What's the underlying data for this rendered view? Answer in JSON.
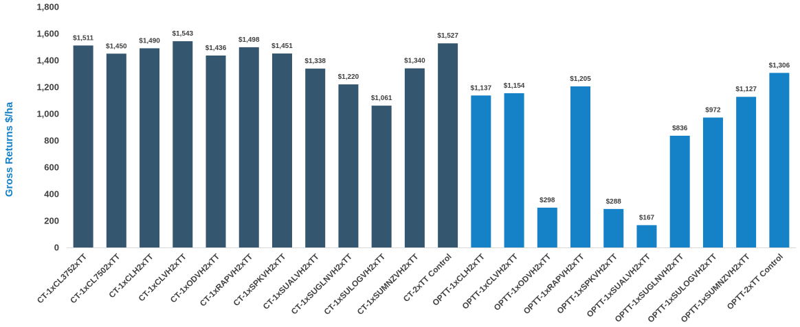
{
  "chart_data": {
    "type": "bar",
    "ylabel": "Gross Returns $/ha",
    "ylim": [
      0,
      1800
    ],
    "yticks": [
      "0",
      "200",
      "400",
      "600",
      "800",
      "1,000",
      "1,200",
      "1,400",
      "1,600",
      "1,800"
    ],
    "grid": false,
    "categories": [
      "CT-1xCL3752xTT",
      "CT-1xCL7502xTT",
      "CT-1xCLH2xTT",
      "CT-1xCLVH2xTT",
      "CT-1xODVH2xTT",
      "CT-1xRAPVH2xTT",
      "CT-1xSPKVH2xTT",
      "CT-1xSUALVH2xTT",
      "CT-1xSUGLNVH2xTT",
      "CT-1xSULOGVH2xTT",
      "CT-1xSUMNZVH2xTT",
      "CT-2xTT Control",
      "OPTT-1xCLH2xTT",
      "OPTT-1xCLVH2xTT",
      "OPTT-1xODVH2xTT",
      "OPTT-1xRAPVH2xTT",
      "OPTT-1xSPKVH2xTT",
      "OPTT-1xSUALVH2xTT",
      "OPTT-1xSUGLNVH2xTT",
      "OPTT-1xSULOGVH2xTT",
      "OPTT-1xSUMNZVH2xTT",
      "OPTT-2xTT Control"
    ],
    "values": [
      1511,
      1450,
      1490,
      1543,
      1436,
      1498,
      1451,
      1338,
      1220,
      1061,
      1340,
      1527,
      1137,
      1154,
      298,
      1205,
      288,
      167,
      836,
      972,
      1127,
      1306
    ],
    "data_labels": [
      "$1,511",
      "$1,450",
      "$1,490",
      "$1,543",
      "$1,436",
      "$1,498",
      "$1,451",
      "$1,338",
      "$1,220",
      "$1,061",
      "$1,340",
      "$1,527",
      "$1,137",
      "$1,154",
      "$298",
      "$1,205",
      "$288",
      "$167",
      "$836",
      "$972",
      "$1,127",
      "$1,306"
    ],
    "group_colors": [
      "#34566f",
      "#1581c6"
    ],
    "group_index": [
      0,
      0,
      0,
      0,
      0,
      0,
      0,
      0,
      0,
      0,
      0,
      0,
      1,
      1,
      1,
      1,
      1,
      1,
      1,
      1,
      1,
      1
    ],
    "ylabel_color": "#1581c6"
  }
}
